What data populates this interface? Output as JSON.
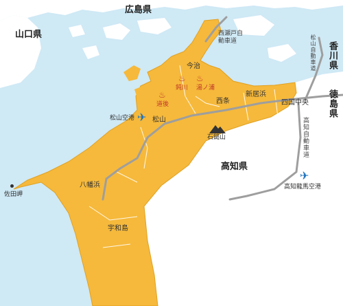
{
  "prefectures": {
    "hiroshima": "広島県",
    "yamaguchi": "山口県",
    "kagawa": "香川県",
    "tokushima": "徳島県",
    "kochi": "高知県"
  },
  "cities": {
    "imabari": "今治",
    "saijo": "西条",
    "niihama": "新居浜",
    "shikokuchuo": "四国中央",
    "matsuyama": "松山",
    "yawatahama": "八幡浜",
    "uwajima": "宇和島"
  },
  "places": {
    "matsuyama_airport": "松山空港",
    "kochi_airport": "高知龍馬空港",
    "ishizuchi": "石鎚山",
    "sadamisaki": "佐田岬"
  },
  "onsen": {
    "dogo": "道後",
    "kinugawa": "鈍川",
    "yunoura": "湯ノ浦"
  },
  "roads": {
    "nishiseto": "西瀬戸自動車道",
    "matsuyama_exp": "松山自動車道",
    "kochi_exp": "高知自動車道"
  },
  "colors": {
    "sea": "#cfe9f5",
    "ehime": "#f6b93b",
    "other_land": "#ffffff",
    "roads": "#9e9e9e",
    "onsen": "#c0392b",
    "airport": "#1e73be"
  },
  "icons": [
    "airplane-icon",
    "mountain-icon",
    "hot-spring-icon"
  ]
}
